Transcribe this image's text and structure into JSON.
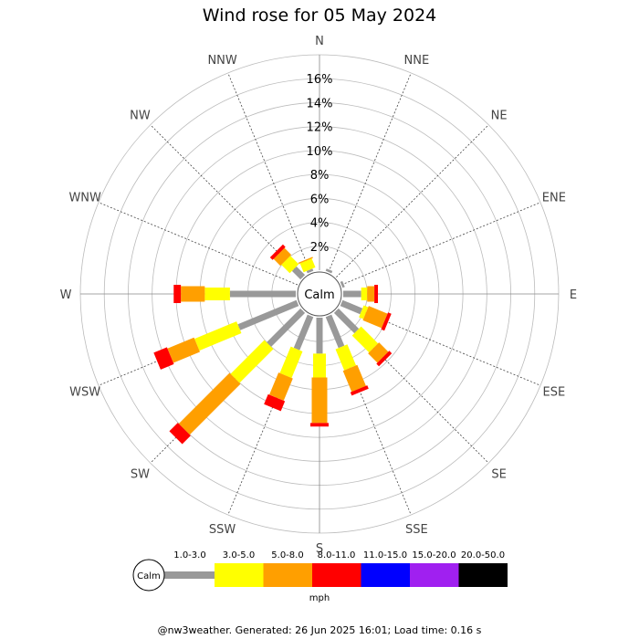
{
  "chart_data": {
    "type": "wind-rose",
    "title": "Wind rose for 05 May 2024",
    "directions": [
      "N",
      "NNE",
      "NE",
      "ENE",
      "E",
      "ESE",
      "SE",
      "SSE",
      "S",
      "SSW",
      "SW",
      "WSW",
      "W",
      "WNW",
      "NW",
      "NNW"
    ],
    "radial_ticks": [
      "2%",
      "4%",
      "6%",
      "8%",
      "10%",
      "12%",
      "14%",
      "16%"
    ],
    "radial_max": 18,
    "calm_label": "Calm",
    "units": "mph",
    "speed_bins": [
      {
        "label": "1.0-3.0",
        "color": "#999999"
      },
      {
        "label": "3.0-5.0",
        "color": "#ffff00"
      },
      {
        "label": "5.0-8.0",
        "color": "#ff9f00"
      },
      {
        "label": "8.0-11.0",
        "color": "#ff0000"
      },
      {
        "label": "11.0-15.0",
        "color": "#0000ff"
      },
      {
        "label": "15.0-20.0",
        "color": "#a020f0"
      },
      {
        "label": "20.0-50.0",
        "color": "#000000"
      }
    ],
    "series_cumulative": [
      {
        "direction": "N",
        "values": [
          0,
          0,
          0,
          0
        ]
      },
      {
        "direction": "NNE",
        "values": [
          0.2,
          0.2,
          0.2,
          0.2
        ]
      },
      {
        "direction": "NE",
        "values": [
          0,
          0,
          0,
          0
        ]
      },
      {
        "direction": "ENE",
        "values": [
          0.2,
          0.2,
          0.2,
          0.2
        ]
      },
      {
        "direction": "E",
        "values": [
          1.5,
          2.0,
          2.6,
          2.9
        ]
      },
      {
        "direction": "ESE",
        "values": [
          1.8,
          2.2,
          3.9,
          4.2
        ]
      },
      {
        "direction": "SE",
        "values": [
          2.4,
          4.4,
          5.5,
          5.8
        ]
      },
      {
        "direction": "SSE",
        "values": [
          2.8,
          4.7,
          6.6,
          6.9
        ]
      },
      {
        "direction": "S",
        "values": [
          3.0,
          5.0,
          8.8,
          9.1
        ]
      },
      {
        "direction": "SSW",
        "values": [
          3.0,
          5.4,
          7.4,
          8.3
        ]
      },
      {
        "direction": "SW",
        "values": [
          4.0,
          8.0,
          14.0,
          15.0
        ]
      },
      {
        "direction": "WSW",
        "values": [
          5.3,
          9.1,
          11.5,
          12.7
        ]
      },
      {
        "direction": "W",
        "values": [
          5.5,
          7.6,
          9.6,
          10.2
        ]
      },
      {
        "direction": "WNW",
        "values": [
          0,
          0,
          0,
          0
        ]
      },
      {
        "direction": "NW",
        "values": [
          1.0,
          2.0,
          2.8,
          3.1
        ]
      },
      {
        "direction": "NNW",
        "values": [
          0.2,
          1.0,
          1.1,
          1.1
        ]
      }
    ]
  },
  "footer": "@nw3weather. Generated: 26 Jun 2025 16:01; Load time: 0.16 s"
}
